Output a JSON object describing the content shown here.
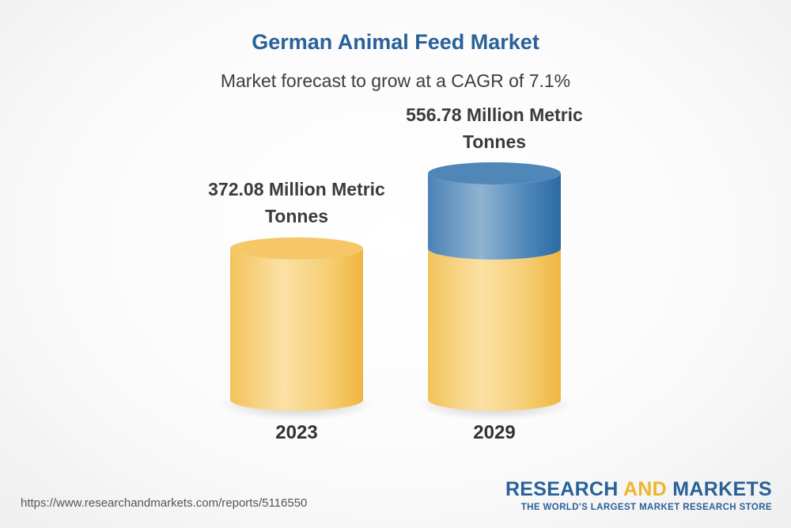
{
  "title": "German Animal Feed Market",
  "subtitle": "Market forecast to grow at a CAGR of 7.1%",
  "chart_data": {
    "type": "bar",
    "style": "3d-cylinder",
    "categories": [
      "2023",
      "2029"
    ],
    "values": [
      372.08,
      556.78
    ],
    "unit": "Million Metric Tonnes",
    "value_labels": [
      "372.08 Million Metric Tonnes",
      "556.78 Million Metric Tonnes"
    ],
    "title": "German Animal Feed Market",
    "subtitle": "Market forecast to grow at a CAGR of 7.1%",
    "cagr_percent": 7.1,
    "colors": {
      "base": "#f5c661",
      "growth": "#4f87b8"
    }
  },
  "footer": {
    "url": "https://www.researchandmarkets.com/reports/5116550",
    "brand_part1": "RESEARCH ",
    "brand_part2": "AND",
    "brand_part3": " MARKETS",
    "tagline": "THE WORLD'S LARGEST MARKET RESEARCH STORE"
  }
}
